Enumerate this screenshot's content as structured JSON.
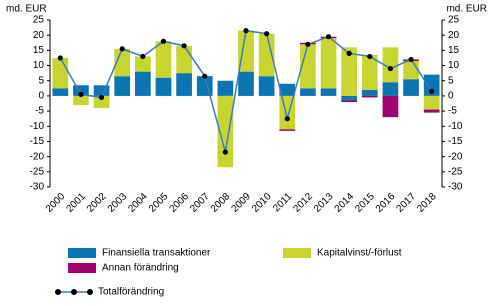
{
  "chart_data": {
    "type": "bar",
    "unit": "md. EUR",
    "categories": [
      "2000",
      "2001",
      "2002",
      "2003",
      "2004",
      "2005",
      "2006",
      "2007",
      "2008",
      "2009",
      "2010",
      "2011",
      "2012",
      "2013",
      "2014",
      "2015",
      "2016",
      "2017",
      "2018"
    ],
    "series": [
      {
        "name": "Finansiella transaktioner",
        "color": "#0b74b3",
        "values": [
          2.5,
          3.5,
          3.5,
          6.5,
          8,
          6,
          7.5,
          6.5,
          5,
          8,
          6.5,
          4,
          2.5,
          2.5,
          -1.5,
          2,
          4.5,
          5.5,
          7
        ]
      },
      {
        "name": "Kapitalvinst/-förlust",
        "color": "#c8d530",
        "values": [
          10,
          -3,
          -4,
          9,
          5,
          12,
          9,
          0,
          -23.5,
          13.5,
          14,
          -11,
          14.5,
          16.5,
          16,
          11.5,
          11.5,
          6,
          -4.5
        ]
      },
      {
        "name": "Annan förändring",
        "color": "#a3006f",
        "values": [
          0,
          0,
          0,
          0,
          0,
          0,
          0,
          0,
          0,
          0,
          0,
          -0.5,
          0.5,
          0.5,
          -0.5,
          -0.5,
          -7,
          0.5,
          -1
        ]
      },
      {
        "name": "Totalförändring",
        "type": "line",
        "color": "#3a7cc0",
        "values": [
          12.5,
          0.5,
          -0.5,
          15.5,
          13,
          18,
          16.5,
          6.5,
          -18.5,
          21.5,
          20.5,
          -7.5,
          17,
          19.5,
          14,
          13,
          9,
          12,
          1.5
        ]
      }
    ],
    "ylim": [
      -30,
      25
    ],
    "yticks": [
      -30,
      -25,
      -20,
      -15,
      -10,
      -5,
      0,
      5,
      10,
      15,
      20,
      25
    ]
  }
}
